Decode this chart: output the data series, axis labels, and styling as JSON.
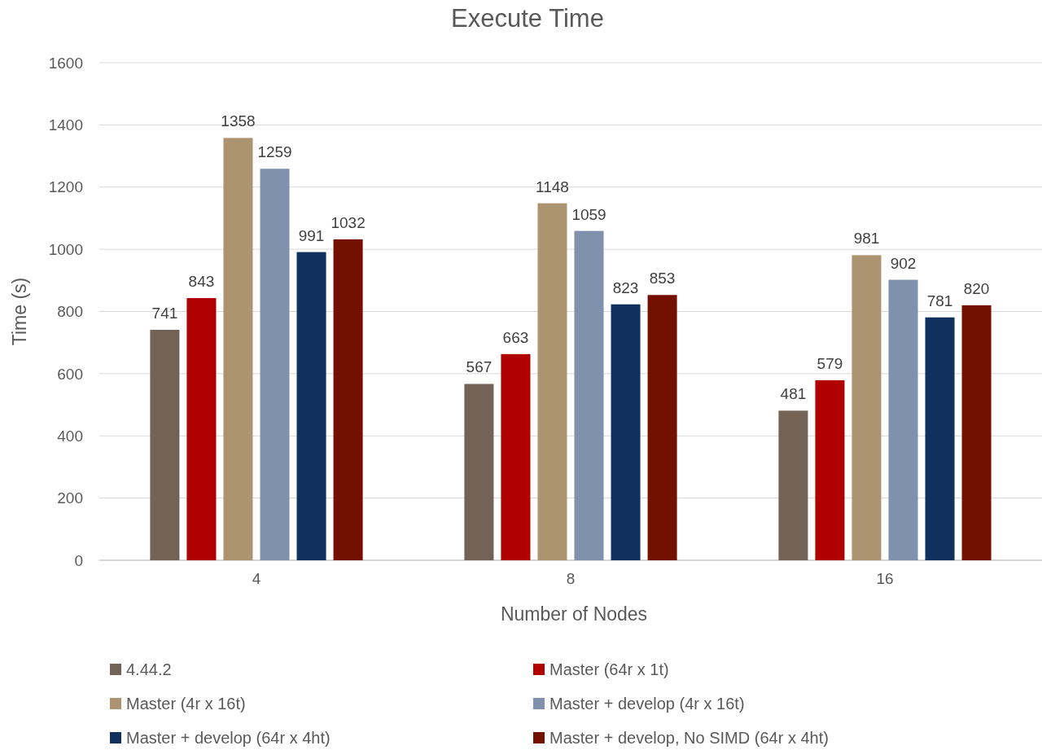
{
  "chart_data": {
    "type": "bar",
    "title": "Execute Time",
    "xlabel": "Number of Nodes",
    "ylabel": "Time (s)",
    "categories": [
      "4",
      "8",
      "16"
    ],
    "series": [
      {
        "name": "4.44.2",
        "color": "#736357",
        "values": [
          741,
          567,
          481
        ]
      },
      {
        "name": "Master (64r x 1t)",
        "color": "#b00000",
        "values": [
          843,
          663,
          579
        ]
      },
      {
        "name": "Master (4r x 16t)",
        "color": "#ad9470",
        "values": [
          1358,
          1148,
          981
        ]
      },
      {
        "name": "Master + develop (4r x 16t)",
        "color": "#8091ad",
        "values": [
          1259,
          1059,
          902
        ]
      },
      {
        "name": "Master + develop (64r x 4ht)",
        "color": "#10305e",
        "values": [
          991,
          823,
          781
        ]
      },
      {
        "name": "Master + develop, No SIMD (64r x 4ht)",
        "color": "#741000",
        "values": [
          1032,
          853,
          820
        ]
      }
    ],
    "ylim": [
      0,
      1600
    ],
    "yticks": [
      0,
      200,
      400,
      600,
      800,
      1000,
      1200,
      1400,
      1600
    ],
    "grid": "y",
    "data_labels": true,
    "legend": "bottom"
  }
}
